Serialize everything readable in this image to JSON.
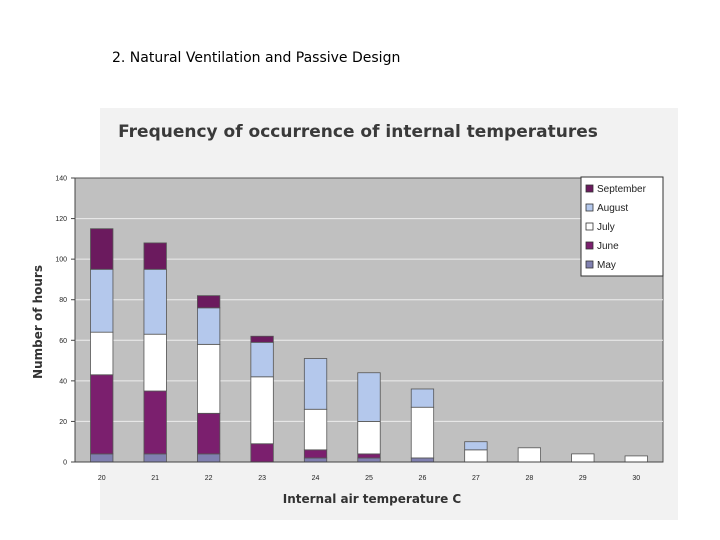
{
  "slide": {
    "title": "2. Natural Ventilation and Passive Design"
  },
  "chart_data": {
    "type": "bar",
    "stacked": true,
    "title": "Frequency of occurrence of internal temperatures",
    "xlabel": "Internal air temperature C",
    "ylabel": "Number of hours",
    "ylim": [
      0,
      140
    ],
    "yticks": [
      0,
      20,
      40,
      60,
      80,
      100,
      120,
      140
    ],
    "categories": [
      "20",
      "21",
      "22",
      "23",
      "24",
      "25",
      "26",
      "27",
      "28",
      "29",
      "30"
    ],
    "series": [
      {
        "name": "May",
        "color": "#8080b0",
        "values": [
          4,
          4,
          4,
          0,
          2,
          2,
          2,
          0,
          0,
          0,
          0
        ]
      },
      {
        "name": "June",
        "color": "#7b1f6e",
        "values": [
          39,
          31,
          20,
          9,
          4,
          2,
          0,
          0,
          0,
          0,
          0
        ]
      },
      {
        "name": "July",
        "color": "#ffffff",
        "values": [
          21,
          28,
          34,
          33,
          20,
          16,
          25,
          6,
          7,
          4,
          3
        ]
      },
      {
        "name": "August",
        "color": "#b4c8ec",
        "values": [
          31,
          32,
          18,
          17,
          25,
          24,
          9,
          4,
          0,
          0,
          0
        ]
      },
      {
        "name": "September",
        "color": "#6b1a5e",
        "values": [
          20,
          13,
          6,
          3,
          0,
          0,
          0,
          0,
          0,
          0,
          0
        ]
      }
    ],
    "legend_placement": "top-right",
    "legend_order": [
      "September",
      "August",
      "July",
      "June",
      "May"
    ],
    "grid": true,
    "plot_background": "#c0c0c0"
  }
}
